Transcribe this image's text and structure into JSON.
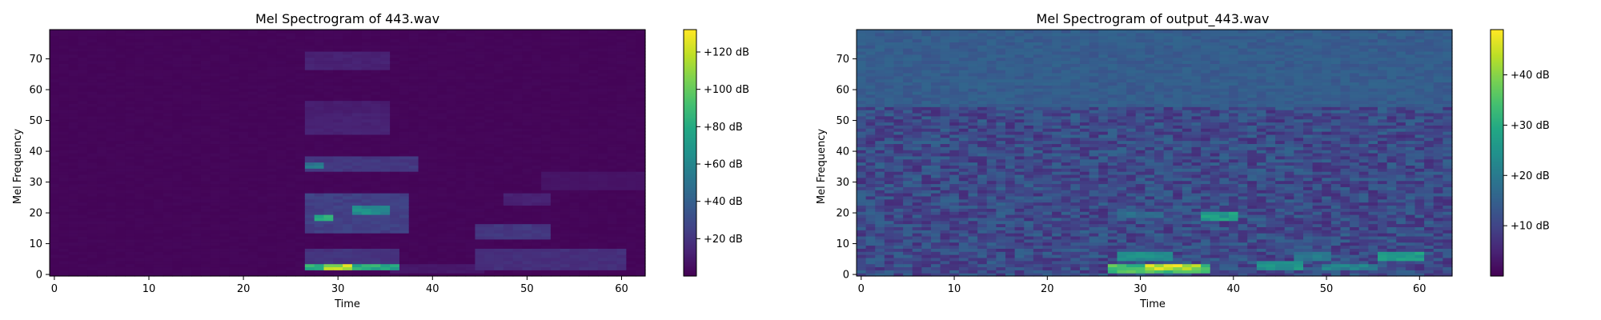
{
  "chart_data": [
    {
      "type": "heatmap",
      "title": "Mel Spectrogram of 443.wav",
      "xlabel": "Time",
      "ylabel": "Mel Frequency",
      "xlim": [
        -0.5,
        62.5
      ],
      "ylim": [
        -0.5,
        79.5
      ],
      "xticks": [
        0,
        10,
        20,
        30,
        40,
        50,
        60
      ],
      "xtick_labels": [
        "0",
        "10",
        "20",
        "30",
        "40",
        "50",
        "60"
      ],
      "yticks": [
        0,
        10,
        20,
        30,
        40,
        50,
        60,
        70
      ],
      "ytick_labels": [
        "0",
        "10",
        "20",
        "30",
        "40",
        "50",
        "60",
        "70"
      ],
      "frames": 63,
      "mel_bins": 80,
      "colormap": "viridis",
      "colorbar": {
        "min": 0,
        "max": 132,
        "ticks": [
          20,
          40,
          60,
          80,
          100,
          120
        ],
        "labels": [
          "+20 dB",
          "+40 dB",
          "+60 dB",
          "+80 dB",
          "+100 dB",
          "+120 dB"
        ]
      },
      "background_level": 1,
      "regions": [
        {
          "t": [
            27,
            36
          ],
          "f": [
            2,
            3
          ],
          "level": 90
        },
        {
          "t": [
            29,
            31
          ],
          "f": [
            2,
            3
          ],
          "level": 132
        },
        {
          "t": [
            27,
            36
          ],
          "f": [
            4,
            8
          ],
          "level": 22
        },
        {
          "t": [
            27,
            37
          ],
          "f": [
            14,
            26
          ],
          "level": 28
        },
        {
          "t": [
            28,
            29
          ],
          "f": [
            18,
            19
          ],
          "level": 95
        },
        {
          "t": [
            32,
            35
          ],
          "f": [
            20,
            22
          ],
          "level": 70
        },
        {
          "t": [
            27,
            38
          ],
          "f": [
            34,
            38
          ],
          "level": 24
        },
        {
          "t": [
            27,
            28
          ],
          "f": [
            35,
            36
          ],
          "level": 60
        },
        {
          "t": [
            27,
            35
          ],
          "f": [
            46,
            52
          ],
          "level": 14
        },
        {
          "t": [
            27,
            35
          ],
          "f": [
            53,
            56
          ],
          "level": 12
        },
        {
          "t": [
            27,
            35
          ],
          "f": [
            67,
            72
          ],
          "level": 14
        },
        {
          "t": [
            45,
            60
          ],
          "f": [
            2,
            8
          ],
          "level": 20
        },
        {
          "t": [
            45,
            52
          ],
          "f": [
            12,
            16
          ],
          "level": 24
        },
        {
          "t": [
            48,
            52
          ],
          "f": [
            23,
            26
          ],
          "level": 14
        },
        {
          "t": [
            52,
            62
          ],
          "f": [
            28,
            33
          ],
          "level": 8
        },
        {
          "t": [
            36,
            45
          ],
          "f": [
            1,
            3
          ],
          "level": 10
        }
      ]
    },
    {
      "type": "heatmap",
      "title": "Mel Spectrogram of output_443.wav",
      "xlabel": "Time",
      "ylabel": "Mel Frequency",
      "xlim": [
        -0.5,
        63.5
      ],
      "ylim": [
        -0.5,
        79.5
      ],
      "xticks": [
        0,
        10,
        20,
        30,
        40,
        50,
        60
      ],
      "xtick_labels": [
        "0",
        "10",
        "20",
        "30",
        "40",
        "50",
        "60"
      ],
      "yticks": [
        0,
        10,
        20,
        30,
        40,
        50,
        60,
        70
      ],
      "ytick_labels": [
        "0",
        "10",
        "20",
        "30",
        "40",
        "50",
        "60",
        "70"
      ],
      "frames": 64,
      "mel_bins": 80,
      "colormap": "viridis",
      "colorbar": {
        "min": 0,
        "max": 49,
        "ticks": [
          10,
          20,
          30,
          40
        ],
        "labels": [
          "+10 dB",
          "+20 dB",
          "+30 dB",
          "+40 dB"
        ]
      },
      "background_level": 9,
      "regions": [
        {
          "t": [
            27,
            37
          ],
          "f": [
            1,
            3
          ],
          "level": 38
        },
        {
          "t": [
            31,
            36
          ],
          "f": [
            2,
            3
          ],
          "level": 49
        },
        {
          "t": [
            28,
            33
          ],
          "f": [
            5,
            7
          ],
          "level": 26
        },
        {
          "t": [
            43,
            47
          ],
          "f": [
            2,
            4
          ],
          "level": 28
        },
        {
          "t": [
            50,
            55
          ],
          "f": [
            2,
            3
          ],
          "level": 24
        },
        {
          "t": [
            56,
            60
          ],
          "f": [
            5,
            7
          ],
          "level": 30
        },
        {
          "t": [
            47,
            50
          ],
          "f": [
            5,
            7
          ],
          "level": 22
        },
        {
          "t": [
            37,
            40
          ],
          "f": [
            18,
            20
          ],
          "level": 30
        },
        {
          "t": [
            28,
            32
          ],
          "f": [
            19,
            20
          ],
          "level": 20
        },
        {
          "t": [
            0,
            63
          ],
          "f": [
            55,
            79
          ],
          "level": 16
        }
      ]
    }
  ]
}
